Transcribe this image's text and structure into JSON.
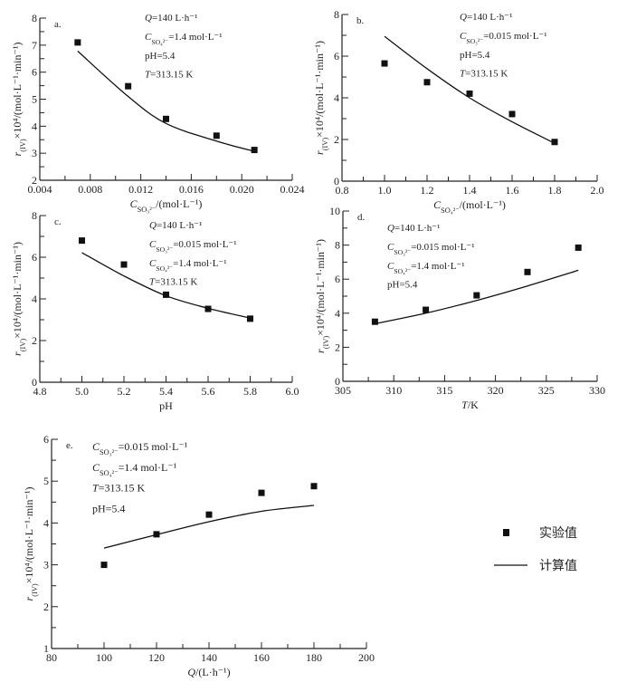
{
  "chart_data": [
    {
      "type": "scatter+line",
      "panel_label": "a.",
      "x": [
        0.007,
        0.011,
        0.014,
        0.018,
        0.021
      ],
      "series": [
        {
          "name": "实验值",
          "kind": "points",
          "values": [
            7.1,
            5.48,
            4.27,
            3.65,
            3.12
          ]
        },
        {
          "name": "计算值",
          "kind": "line",
          "values": [
            6.78,
            5.1,
            4.1,
            3.45,
            3.07
          ]
        }
      ],
      "xlim": [
        0.004,
        0.024
      ],
      "ylim": [
        2,
        8
      ],
      "xticks": [
        0.004,
        0.008,
        0.012,
        0.016,
        0.02,
        0.024
      ],
      "xtick_labels": [
        "0.004",
        "0.008",
        "0.012",
        "0.016",
        "0.020",
        "0.024"
      ],
      "xminor": 0.002,
      "yticks": [
        2,
        3,
        4,
        5,
        6,
        7,
        8
      ],
      "yminor": 0.5,
      "xlabel": {
        "italic": "C",
        "sub": "SO₃²⁻",
        "text": "/(mol·L⁻¹)"
      },
      "ylabel": {
        "italic": "r",
        "sub": "(IV)",
        "text": "×10⁴/(mol·L⁻¹·min⁻¹)"
      },
      "annotations": [
        {
          "italic": "Q",
          "sub": "",
          "text": "=140 L·h⁻¹"
        },
        {
          "italic": "C",
          "sub": "SO₄²⁻",
          "text": "=1.4 mol·L⁻¹"
        },
        {
          "italic": "",
          "sub": "",
          "text": "pH=5.4"
        },
        {
          "italic": "T",
          "sub": "",
          "text": "=313.15 K"
        }
      ]
    },
    {
      "type": "scatter+line",
      "panel_label": "b.",
      "x": [
        1.0,
        1.2,
        1.4,
        1.6,
        1.8
      ],
      "series": [
        {
          "name": "实验值",
          "kind": "points",
          "values": [
            5.65,
            4.75,
            4.2,
            3.22,
            1.88
          ]
        },
        {
          "name": "计算值",
          "kind": "line",
          "values": [
            6.95,
            5.4,
            4.0,
            2.85,
            1.82
          ]
        }
      ],
      "xlim": [
        0.8,
        2.0
      ],
      "ylim": [
        0,
        8
      ],
      "xticks": [
        0.8,
        1.0,
        1.2,
        1.4,
        1.6,
        1.8,
        2.0
      ],
      "xtick_labels": [
        "0.8",
        "1.0",
        "1.2",
        "1.4",
        "1.6",
        "1.8",
        "2.0"
      ],
      "xminor": 0.1,
      "yticks": [
        0,
        2,
        4,
        6,
        8
      ],
      "yminor": 1,
      "xlabel": {
        "italic": "C",
        "sub": "SO₄²⁻",
        "text": "/(mol·L⁻¹)"
      },
      "ylabel": {
        "italic": "r",
        "sub": "(IV)",
        "text": "×10⁴/(mol·L⁻¹·min⁻¹)"
      },
      "annotations": [
        {
          "italic": "Q",
          "sub": "",
          "text": "=140 L·h⁻¹"
        },
        {
          "italic": "C",
          "sub": "SO₃²⁻",
          "text": "=0.015 mol·L⁻¹"
        },
        {
          "italic": "",
          "sub": "",
          "text": "pH=5.4"
        },
        {
          "italic": "T",
          "sub": "",
          "text": "=313.15 K"
        }
      ]
    },
    {
      "type": "scatter+line",
      "panel_label": "c.",
      "x": [
        5.0,
        5.2,
        5.4,
        5.6,
        5.8
      ],
      "series": [
        {
          "name": "实验值",
          "kind": "points",
          "values": [
            6.8,
            5.65,
            4.2,
            3.52,
            3.05
          ]
        },
        {
          "name": "计算值",
          "kind": "line",
          "values": [
            6.22,
            5.1,
            4.15,
            3.55,
            3.08
          ]
        }
      ],
      "xlim": [
        4.8,
        6.0
      ],
      "ylim": [
        0,
        8
      ],
      "xticks": [
        4.8,
        5.0,
        5.2,
        5.4,
        5.6,
        5.8,
        6.0
      ],
      "xtick_labels": [
        "4.8",
        "5.0",
        "5.2",
        "5.4",
        "5.6",
        "5.8",
        "6.0"
      ],
      "xminor": 0.1,
      "yticks": [
        0,
        2,
        4,
        6,
        8
      ],
      "yminor": 1,
      "xlabel": {
        "italic": "",
        "sub": "",
        "text": "pH"
      },
      "ylabel": {
        "italic": "r",
        "sub": "(IV)",
        "text": "×10⁴/(mol·L⁻¹·min⁻¹)"
      },
      "annotations": [
        {
          "italic": "Q",
          "sub": "",
          "text": "=140 L·h⁻¹"
        },
        {
          "italic": "C",
          "sub": "SO₃²⁻",
          "text": "=0.015 mol·L⁻¹"
        },
        {
          "italic": "C",
          "sub": "SO₄²⁻",
          "text": "=1.4 mol·L⁻¹"
        },
        {
          "italic": "T",
          "sub": "",
          "text": "=313.15 K"
        }
      ]
    },
    {
      "type": "scatter+line",
      "panel_label": "d.",
      "x": [
        308.15,
        313.15,
        318.15,
        323.15,
        328.15
      ],
      "series": [
        {
          "name": "实验值",
          "kind": "points",
          "values": [
            3.5,
            4.2,
            5.05,
            6.42,
            7.85
          ]
        },
        {
          "name": "计算值",
          "kind": "line",
          "values": [
            3.38,
            4.0,
            4.75,
            5.6,
            6.52
          ]
        }
      ],
      "xlim": [
        305,
        330
      ],
      "ylim": [
        0,
        10
      ],
      "xticks": [
        305,
        310,
        315,
        320,
        325,
        330
      ],
      "xtick_labels": [
        "305",
        "310",
        "315",
        "320",
        "325",
        "330"
      ],
      "xminor": 2.5,
      "yticks": [
        0,
        2,
        4,
        6,
        8,
        10
      ],
      "yminor": 1,
      "xlabel": {
        "italic": "T",
        "sub": "",
        "text": "/K"
      },
      "ylabel": {
        "italic": "r",
        "sub": "(IV)",
        "text": "×10⁴/(mol·L⁻¹·min⁻¹)"
      },
      "annotations": [
        {
          "italic": "Q",
          "sub": "",
          "text": "=140 L·h⁻¹"
        },
        {
          "italic": "C",
          "sub": "SO₃²⁻",
          "text": "=0.015 mol·L⁻¹"
        },
        {
          "italic": "C",
          "sub": "SO₄²⁻",
          "text": "=1.4 mol·L⁻¹"
        },
        {
          "italic": "",
          "sub": "",
          "text": "pH=5.4"
        }
      ]
    },
    {
      "type": "scatter+line",
      "panel_label": "e.",
      "x": [
        100,
        120,
        140,
        160,
        180
      ],
      "series": [
        {
          "name": "实验值",
          "kind": "points",
          "values": [
            3.0,
            3.73,
            4.2,
            4.72,
            4.88
          ]
        },
        {
          "name": "计算值",
          "kind": "line",
          "values": [
            3.4,
            3.72,
            4.03,
            4.28,
            4.42
          ]
        }
      ],
      "xlim": [
        80,
        200
      ],
      "ylim": [
        1,
        6
      ],
      "xticks": [
        80,
        100,
        120,
        140,
        160,
        180,
        200
      ],
      "xtick_labels": [
        "80",
        "100",
        "120",
        "140",
        "160",
        "180",
        "200"
      ],
      "xminor": 10,
      "yticks": [
        1,
        2,
        3,
        4,
        5,
        6
      ],
      "yminor": 0.5,
      "xlabel": {
        "italic": "Q",
        "sub": "",
        "text": "/(L·h⁻¹)"
      },
      "ylabel": {
        "italic": "r",
        "sub": "(IV)",
        "text": "×10⁴/(mol·L⁻¹·min⁻¹)"
      },
      "annotations": [
        {
          "italic": "C",
          "sub": "SO₃²⁻",
          "text": "=0.015 mol·L⁻¹"
        },
        {
          "italic": "C",
          "sub": "SO₄²⁻",
          "text": "=1.4 mol·L⁻¹"
        },
        {
          "italic": "T",
          "sub": "",
          "text": "=313.15 K"
        },
        {
          "italic": "",
          "sub": "",
          "text": "pH=5.4"
        }
      ]
    }
  ],
  "legend": {
    "placement": "right of panel e",
    "items": [
      {
        "label": "实验值",
        "marker": "square"
      },
      {
        "label": "计算值",
        "marker": "line"
      }
    ]
  },
  "colors": {
    "marks": "#111111",
    "axes": "#222222"
  }
}
